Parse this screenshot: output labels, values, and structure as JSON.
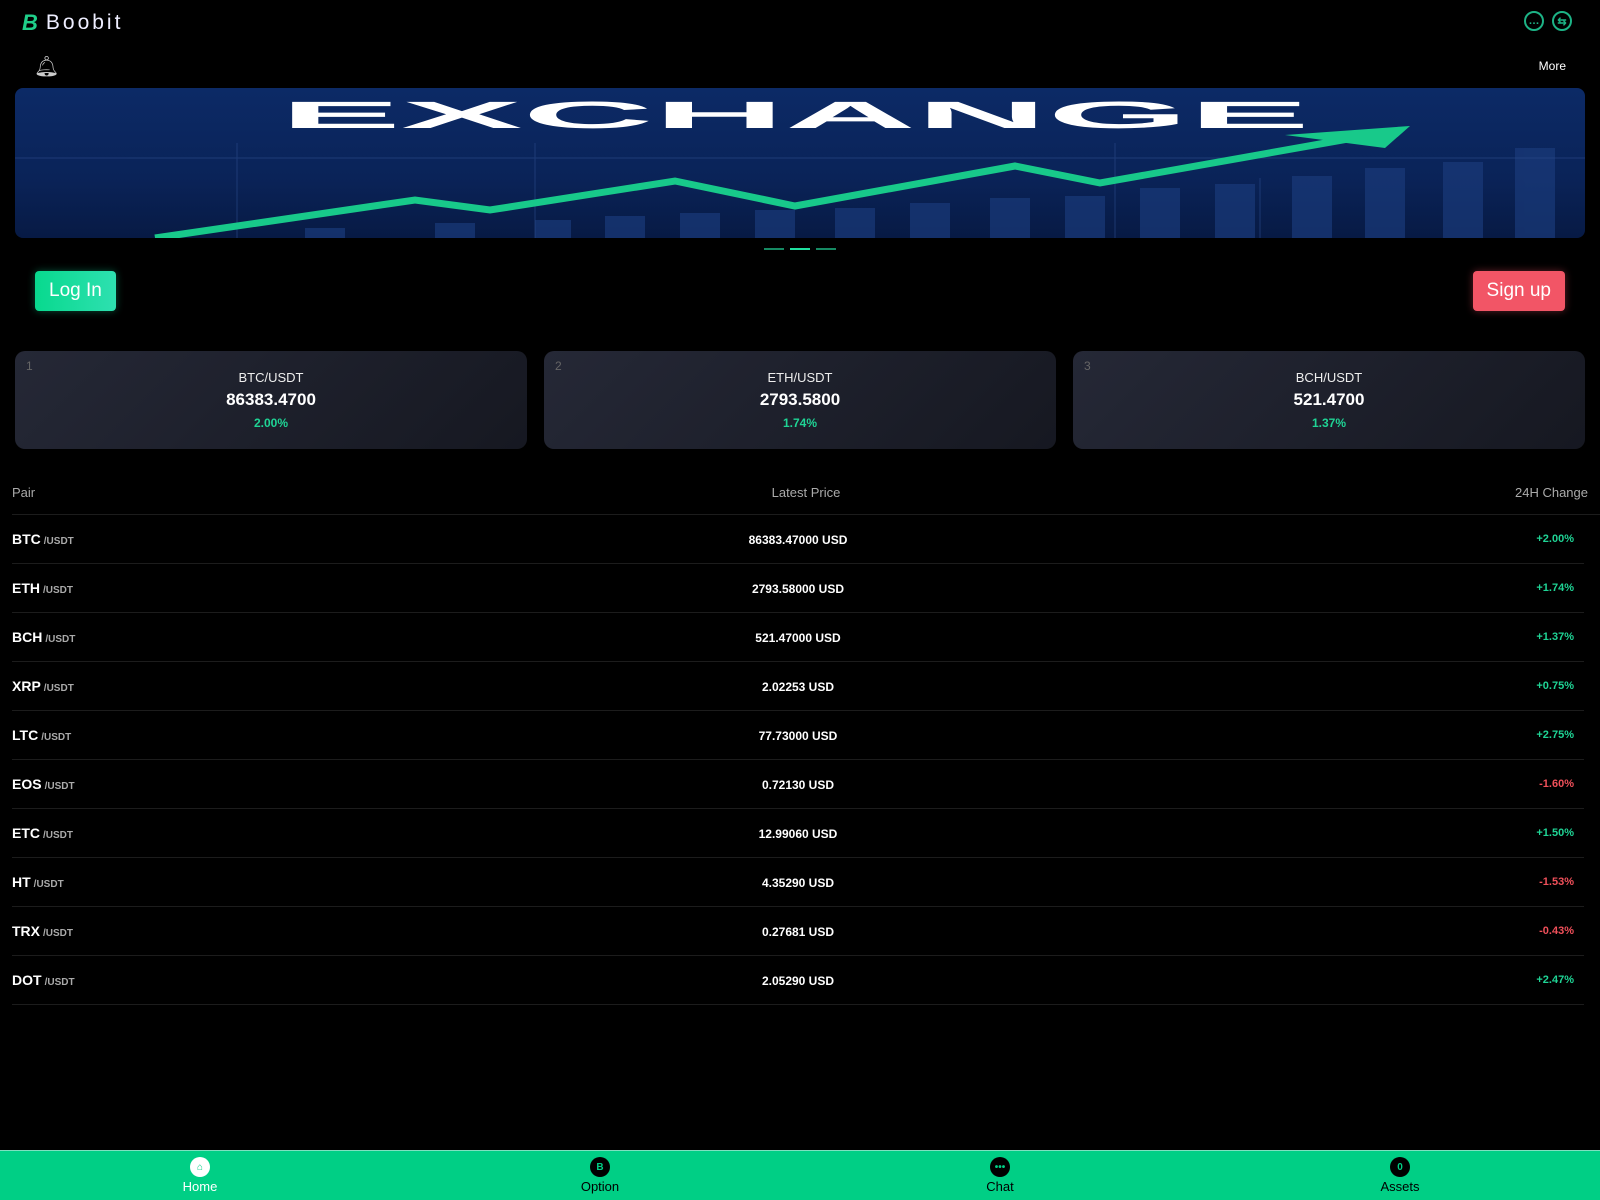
{
  "header": {
    "logo_mark": "B",
    "brand": "Boobit",
    "icons": [
      "chat-icon",
      "swap-icon"
    ],
    "more": "More",
    "bell_icon": "bell-icon"
  },
  "banner": {
    "title": "EXCHANGE",
    "slides": 3,
    "active_slide": 2
  },
  "auth": {
    "login": "Log In",
    "signup": "Sign up"
  },
  "cards": [
    {
      "index": "1",
      "pair": "BTC/USDT",
      "price": "86383.4700",
      "change": "2.00%"
    },
    {
      "index": "2",
      "pair": "ETH/USDT",
      "price": "2793.5800",
      "change": "1.74%"
    },
    {
      "index": "3",
      "pair": "BCH/USDT",
      "price": "521.4700",
      "change": "1.37%"
    }
  ],
  "table": {
    "headers": {
      "pair": "Pair",
      "price": "Latest Price",
      "change": "24H Change"
    },
    "rows": [
      {
        "base": "BTC",
        "quote": "/USDT",
        "price": "86383.47000 USD",
        "change": "+2.00%",
        "dir": "up"
      },
      {
        "base": "ETH",
        "quote": "/USDT",
        "price": "2793.58000 USD",
        "change": "+1.74%",
        "dir": "up"
      },
      {
        "base": "BCH",
        "quote": "/USDT",
        "price": "521.47000 USD",
        "change": "+1.37%",
        "dir": "up"
      },
      {
        "base": "XRP",
        "quote": "/USDT",
        "price": "2.02253 USD",
        "change": "+0.75%",
        "dir": "up"
      },
      {
        "base": "LTC",
        "quote": "/USDT",
        "price": "77.73000 USD",
        "change": "+2.75%",
        "dir": "up"
      },
      {
        "base": "EOS",
        "quote": "/USDT",
        "price": "0.72130 USD",
        "change": "-1.60%",
        "dir": "down"
      },
      {
        "base": "ETC",
        "quote": "/USDT",
        "price": "12.99060 USD",
        "change": "+1.50%",
        "dir": "up"
      },
      {
        "base": "HT",
        "quote": "/USDT",
        "price": "4.35290 USD",
        "change": "-1.53%",
        "dir": "down"
      },
      {
        "base": "TRX",
        "quote": "/USDT",
        "price": "0.27681 USD",
        "change": "-0.43%",
        "dir": "down"
      },
      {
        "base": "DOT",
        "quote": "/USDT",
        "price": "2.05290 USD",
        "change": "+2.47%",
        "dir": "up"
      }
    ]
  },
  "nav": [
    {
      "label": "Home",
      "icon": "home-icon",
      "glyph": "⌂",
      "active": true
    },
    {
      "label": "Option",
      "icon": "bitcoin-icon",
      "glyph": "B",
      "active": false
    },
    {
      "label": "Chat",
      "icon": "chat-icon",
      "glyph": "•••",
      "active": false
    },
    {
      "label": "Assets",
      "icon": "assets-icon",
      "glyph": "0",
      "active": false
    }
  ],
  "colors": {
    "accent": "#00cf85",
    "up": "#1fd495",
    "down": "#f0505a",
    "signup": "#f25566"
  }
}
